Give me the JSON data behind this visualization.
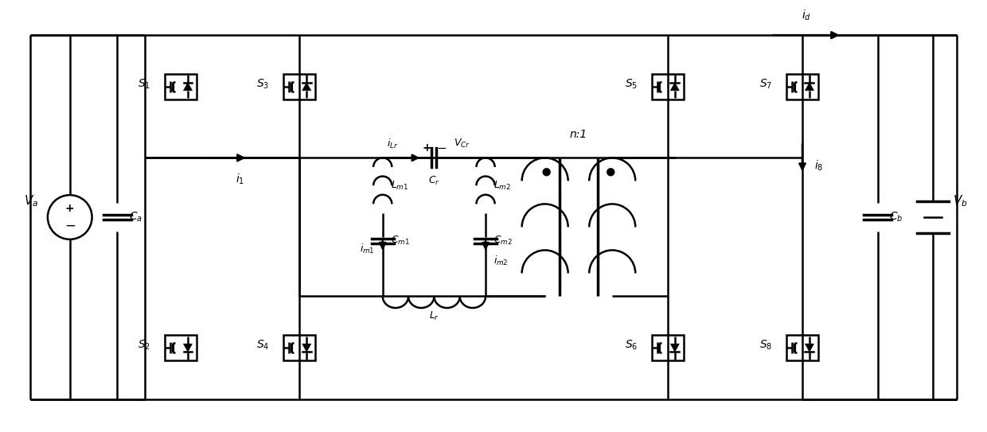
{
  "bg_color": "#ffffff",
  "line_color": "#000000",
  "lw": 1.8,
  "lw_thick": 2.5,
  "fig_width": 12.4,
  "fig_height": 5.43,
  "xlim": [
    0,
    124
  ],
  "ylim": [
    0,
    54.3
  ]
}
